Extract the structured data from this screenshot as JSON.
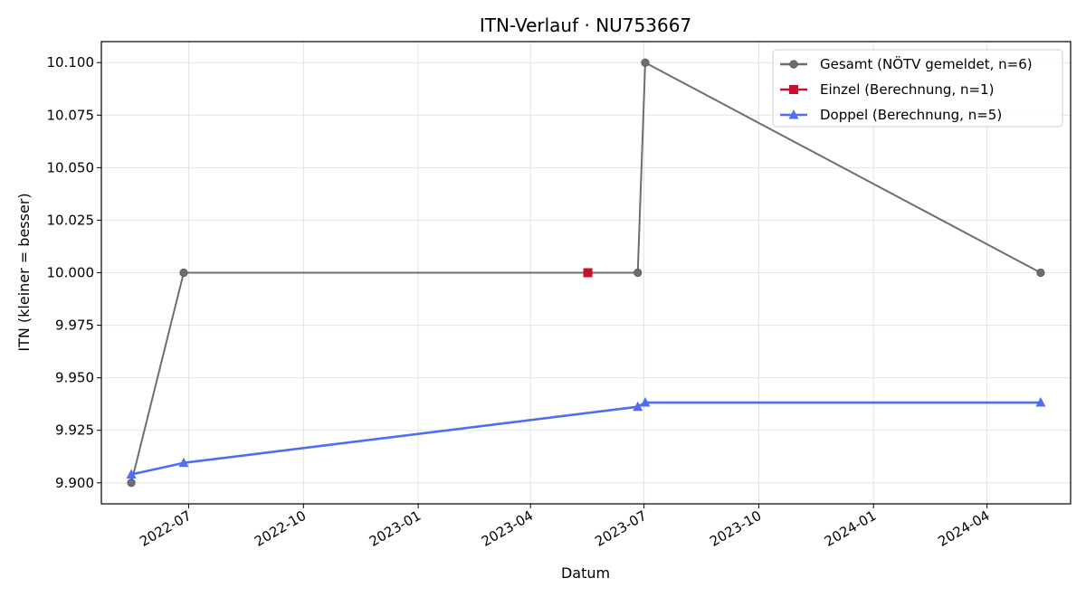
{
  "chart_data": {
    "type": "line",
    "title": "ITN-Verlauf · NU753667",
    "xlabel": "Datum",
    "ylabel": "ITN  (kleiner = besser)",
    "x_range": [
      "2022-04-22",
      "2024-06-07"
    ],
    "ylim": [
      9.89,
      10.11
    ],
    "x_ticks": [
      {
        "date": "2022-07-01",
        "label": "2022-07"
      },
      {
        "date": "2022-10-01",
        "label": "2022-10"
      },
      {
        "date": "2023-01-01",
        "label": "2023-01"
      },
      {
        "date": "2023-04-01",
        "label": "2023-04"
      },
      {
        "date": "2023-07-01",
        "label": "2023-07"
      },
      {
        "date": "2023-10-01",
        "label": "2023-10"
      },
      {
        "date": "2024-01-01",
        "label": "2024-01"
      },
      {
        "date": "2024-04-01",
        "label": "2024-04"
      }
    ],
    "y_ticks": [
      {
        "value": 9.9,
        "label": "9.900"
      },
      {
        "value": 9.925,
        "label": "9.925"
      },
      {
        "value": 9.95,
        "label": "9.950"
      },
      {
        "value": 9.975,
        "label": "9.975"
      },
      {
        "value": 10.0,
        "label": "10.000"
      },
      {
        "value": 10.025,
        "label": "10.025"
      },
      {
        "value": 10.05,
        "label": "10.050"
      },
      {
        "value": 10.075,
        "label": "10.075"
      },
      {
        "value": 10.1,
        "label": "10.100"
      }
    ],
    "grid": true,
    "legend_position": "top-right",
    "series": [
      {
        "name": "Gesamt (NÖTV gemeldet, n=6)",
        "color": "#6e6e6e",
        "marker": "circle",
        "points": [
          {
            "x": "2022-05-16",
            "y": 9.9
          },
          {
            "x": "2022-06-27",
            "y": 10.0
          },
          {
            "x": "2023-06-26",
            "y": 10.0
          },
          {
            "x": "2023-07-02",
            "y": 10.1
          },
          {
            "x": "2024-05-14",
            "y": 10.0
          }
        ]
      },
      {
        "name": "Einzel (Berechnung, n=1)",
        "color": "#c8102e",
        "marker": "square",
        "points": [
          {
            "x": "2023-05-17",
            "y": 10.0
          }
        ]
      },
      {
        "name": "Doppel (Berechnung, n=5)",
        "color": "#4f6ef0",
        "marker": "triangle",
        "points": [
          {
            "x": "2022-05-16",
            "y": 9.904
          },
          {
            "x": "2022-06-27",
            "y": 9.9095
          },
          {
            "x": "2023-06-26",
            "y": 9.9362
          },
          {
            "x": "2023-07-02",
            "y": 9.9382
          },
          {
            "x": "2024-05-14",
            "y": 9.9382
          }
        ]
      }
    ]
  }
}
